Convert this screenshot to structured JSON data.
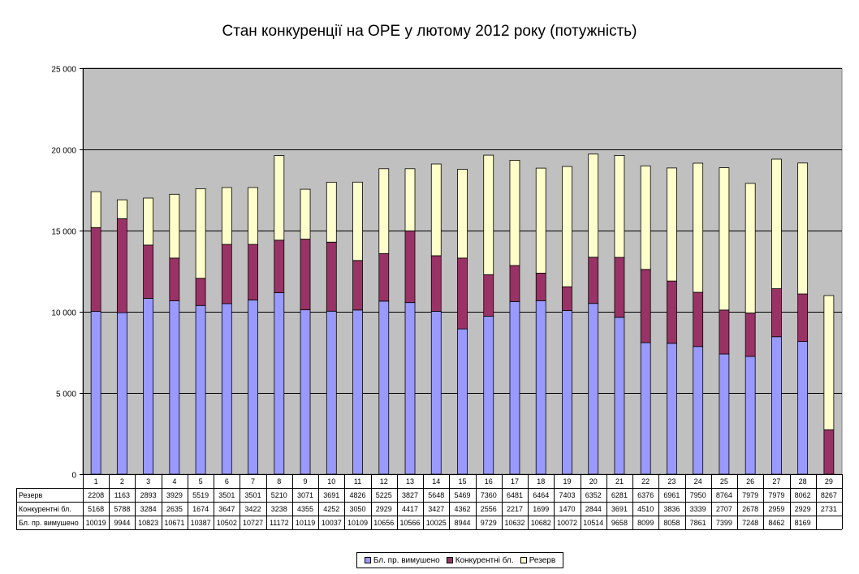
{
  "chart_data": {
    "type": "bar",
    "stacked": true,
    "title": "Стан конкуренції на ОРЕ  у лютому 2012 року (потужність)",
    "categories": [
      "1",
      "2",
      "3",
      "4",
      "5",
      "6",
      "7",
      "8",
      "9",
      "10",
      "11",
      "12",
      "13",
      "14",
      "15",
      "16",
      "17",
      "18",
      "19",
      "20",
      "21",
      "22",
      "23",
      "24",
      "25",
      "26",
      "27",
      "28",
      "29"
    ],
    "ylim": [
      0,
      25000
    ],
    "yticks": [
      0,
      5000,
      10000,
      15000,
      20000,
      25000
    ],
    "ytick_labels": [
      "0",
      "5 000",
      "10 000",
      "15 000",
      "20 000",
      "25 000"
    ],
    "grid": true,
    "plot_background": "#c0c0c0",
    "series": [
      {
        "name": "Бл. пр. вимушено",
        "color": "#9999ff",
        "values": [
          10019,
          9944,
          10823,
          10671,
          10387,
          10502,
          10727,
          11172,
          10119,
          10037,
          10109,
          10656,
          10566,
          10025,
          8944,
          9729,
          10632,
          10682,
          10072,
          10514,
          9658,
          8099,
          8058,
          7861,
          7399,
          7248,
          8462,
          8169,
          null
        ]
      },
      {
        "name": "Конкурентні бл.",
        "color": "#993366",
        "values": [
          5168,
          5788,
          3284,
          2635,
          1674,
          3647,
          3422,
          3238,
          4355,
          4252,
          3050,
          2929,
          4417,
          3427,
          4362,
          2556,
          2217,
          1699,
          1470,
          2844,
          3691,
          4510,
          3836,
          3339,
          2707,
          2678,
          2959,
          2929,
          2731
        ]
      },
      {
        "name": "Резерв",
        "color": "#ffffcc",
        "values": [
          2208,
          1163,
          2893,
          3929,
          5519,
          3501,
          3501,
          5210,
          3071,
          3691,
          4826,
          5225,
          3827,
          5648,
          5469,
          7360,
          6481,
          6464,
          7403,
          6352,
          6281,
          6376,
          6961,
          7950,
          8764,
          7979,
          7979,
          8062,
          8267
        ]
      }
    ],
    "table_row_order": [
      "Резерв",
      "Конкурентні бл.",
      "Бл. пр. вимушено"
    ],
    "table_row_labels": [
      "Резерв",
      "Конкурентні бл.",
      "Бл. пр. вимушено"
    ],
    "legend_order": [
      "Бл. пр. вимушено",
      "Конкурентні бл.",
      "Резерв"
    ],
    "legend_placement": "bottom"
  }
}
